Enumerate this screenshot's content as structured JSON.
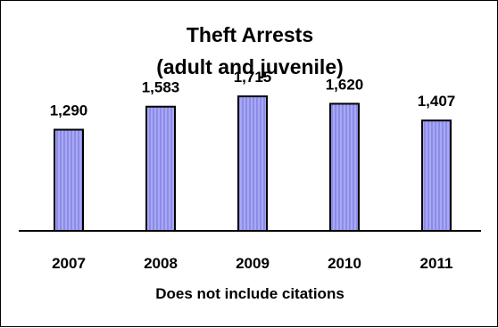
{
  "chart_data": {
    "type": "bar",
    "title_lines": [
      "Theft Arrests",
      "(adult and juvenile)"
    ],
    "categories": [
      "2007",
      "2008",
      "2009",
      "2010",
      "2011"
    ],
    "values": [
      1290,
      1583,
      1715,
      1620,
      1407
    ],
    "value_labels": [
      "1,290",
      "1,583",
      "1,715",
      "1,620",
      "1,407"
    ],
    "footnote": "Does not include citations",
    "xlabel": "",
    "ylabel": "",
    "ylim": [
      0,
      2000
    ],
    "grid": false,
    "legend": "none",
    "colors": {
      "bar_fill": "#8c8ce8",
      "bar_stripe": "#a8a8f4",
      "bar_stroke": "#000000",
      "axis": "#000000"
    }
  }
}
